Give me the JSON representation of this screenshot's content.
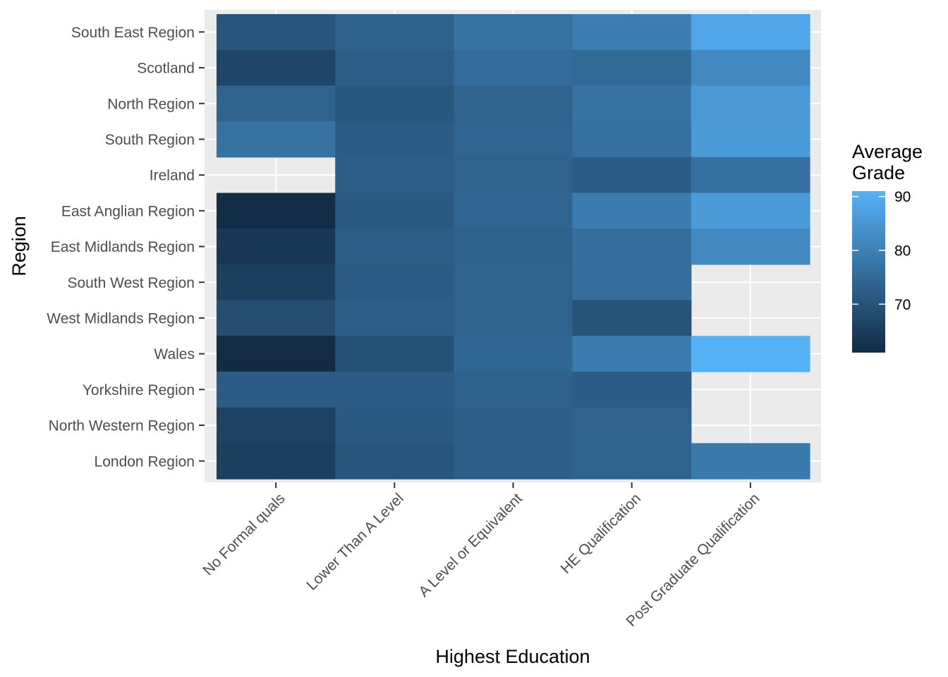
{
  "chart_data": {
    "type": "heatmap",
    "xlabel": "Highest Education",
    "ylabel": "Region",
    "x_categories": [
      "No Formal quals",
      "Lower Than A Level",
      "A Level or Equivalent",
      "HE Qualification",
      "Post Graduate Qualification"
    ],
    "y_categories": [
      "South East Region",
      "Scotland",
      "North Region",
      "South Region",
      "Ireland",
      "East Anglian Region",
      "East Midlands Region",
      "South West Region",
      "West Midlands Region",
      "Wales",
      "Yorkshire Region",
      "North Western Region",
      "London Region"
    ],
    "values": [
      [
        70.5,
        73.0,
        77.0,
        79.5,
        88.5
      ],
      [
        67.0,
        72.5,
        75.5,
        75.0,
        82.0
      ],
      [
        73.5,
        71.0,
        73.5,
        77.0,
        85.5
      ],
      [
        77.0,
        72.0,
        74.0,
        76.5,
        86.0
      ],
      [
        null,
        72.5,
        73.5,
        72.0,
        76.5
      ],
      [
        61.5,
        71.5,
        74.0,
        79.0,
        86.0
      ],
      [
        64.0,
        72.5,
        73.0,
        76.0,
        82.0
      ],
      [
        65.5,
        72.0,
        73.5,
        76.0,
        null
      ],
      [
        68.5,
        72.5,
        73.5,
        70.0,
        null
      ],
      [
        61.0,
        69.5,
        74.5,
        79.0,
        91.0
      ],
      [
        72.0,
        72.0,
        73.0,
        72.0,
        null
      ],
      [
        66.0,
        71.5,
        72.5,
        73.5,
        null
      ],
      [
        65.5,
        70.5,
        72.5,
        73.5,
        78.5
      ]
    ],
    "value_range": [
      61,
      91
    ],
    "legend": {
      "title_lines": [
        "Average",
        "Grade"
      ],
      "ticks": [
        70,
        80,
        90
      ],
      "position": "right"
    },
    "colors": {
      "low": "#132B43",
      "high": "#56B1F7",
      "panel_background": "#EBEBEB",
      "grid": "#FFFFFF"
    },
    "grid": true
  }
}
